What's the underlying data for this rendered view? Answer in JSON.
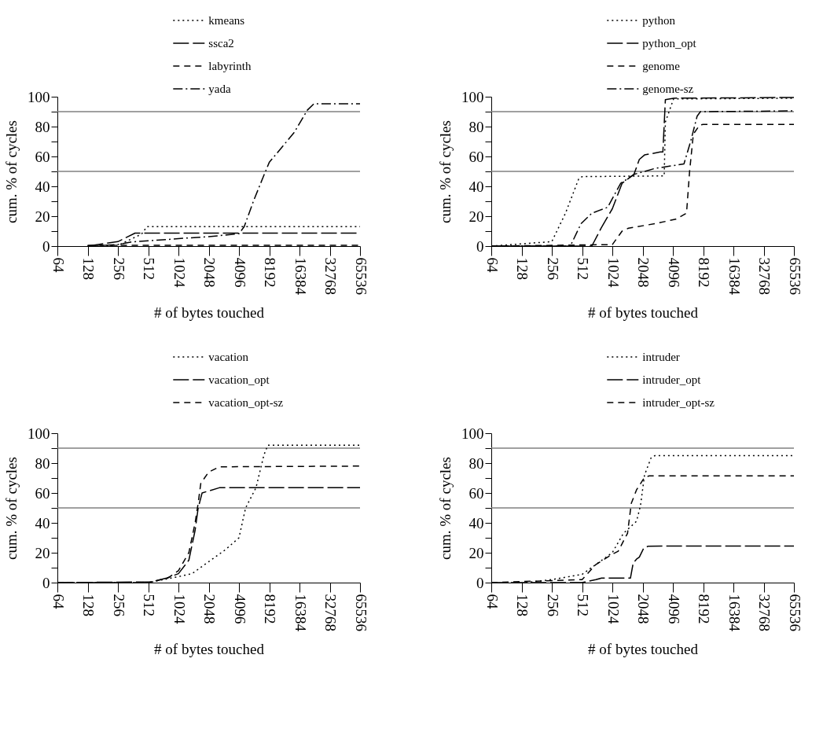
{
  "chart_data": [
    {
      "type": "line",
      "xlabel": "# of bytes touched",
      "ylabel": "cum. % of cycles",
      "log": "x",
      "legend": "top",
      "grid": false,
      "xlim": [
        64,
        65536
      ],
      "xticks": [
        64,
        128,
        256,
        512,
        1024,
        2048,
        4096,
        8192,
        16384,
        32768,
        65536
      ],
      "ylim": [
        0,
        100
      ],
      "yticks": [
        0,
        {
          "value": 10,
          "label": null
        },
        20,
        {
          "value": 30,
          "label": null
        },
        40,
        {
          "value": 50,
          "label": null
        },
        60,
        {
          "value": 70,
          "label": null
        },
        80,
        {
          "value": 90,
          "label": null
        },
        100
      ],
      "ref_lines": [
        {
          "axis": "y",
          "value": 50,
          "color": "#808080"
        },
        {
          "axis": "y",
          "value": 90,
          "color": "#808080"
        }
      ],
      "series": [
        {
          "name": "kmeans",
          "color": "#000000",
          "line_style": "dotted",
          "x": [
            128,
            256,
            440,
            497,
            65536
          ],
          "values": [
            0,
            0.5,
            8,
            13,
            13
          ]
        },
        {
          "name": "ssca2",
          "color": "#000000",
          "line_style": "longdash",
          "x": [
            128,
            256,
            379,
            65536
          ],
          "values": [
            0,
            3,
            8.7,
            8.7
          ]
        },
        {
          "name": "labyrinth",
          "color": "#000000",
          "line_style": "dashed",
          "x": [
            128,
            65536
          ],
          "values": [
            0.5,
            0.5
          ]
        },
        {
          "name": "yada",
          "color": "#000000",
          "line_style": "dashdot",
          "x": [
            128,
            256,
            350,
            512,
            1024,
            2048,
            4096,
            4620,
            5700,
            7260,
            8192,
            14500,
            19600,
            22800,
            65536
          ],
          "values": [
            0,
            1,
            2.8,
            3.5,
            5,
            6.3,
            8.3,
            13,
            30,
            47.5,
            56,
            76,
            91,
            95.3,
            95.3
          ]
        }
      ]
    },
    {
      "type": "line",
      "xlabel": "# of bytes touched",
      "ylabel": "cum. % of cycles",
      "log": "x",
      "legend": "top",
      "grid": false,
      "xlim": [
        64,
        65536
      ],
      "xticks": [
        64,
        128,
        256,
        512,
        1024,
        2048,
        4096,
        8192,
        16384,
        32768,
        65536
      ],
      "ylim": [
        0,
        100
      ],
      "yticks": [
        0,
        {
          "value": 10,
          "label": null
        },
        20,
        {
          "value": 30,
          "label": null
        },
        40,
        {
          "value": 50,
          "label": null
        },
        60,
        {
          "value": 70,
          "label": null
        },
        80,
        {
          "value": 90,
          "label": null
        },
        100
      ],
      "ref_lines": [
        {
          "axis": "y",
          "value": 50,
          "color": "#808080"
        },
        {
          "axis": "y",
          "value": 90,
          "color": "#808080"
        }
      ],
      "series": [
        {
          "name": "python",
          "color": "#000000",
          "line_style": "dotted",
          "x": [
            64,
            256,
            350,
            474,
            512,
            3360,
            3450,
            4160,
            65536
          ],
          "values": [
            0,
            3,
            22,
            45,
            46.5,
            47,
            83,
            98.5,
            99
          ]
        },
        {
          "name": "python_opt",
          "color": "#000000",
          "line_style": "longdash",
          "x": [
            64,
            640,
            792,
            1024,
            1280,
            1680,
            1900,
            2140,
            3070,
            3260,
            3450,
            4160,
            65536
          ],
          "values": [
            0,
            0,
            12,
            25,
            42,
            48,
            58,
            61,
            63,
            63,
            98,
            99,
            99.5
          ]
        },
        {
          "name": "genome",
          "color": "#000000",
          "line_style": "dashed",
          "x": [
            64,
            1024,
            1280,
            1480,
            2720,
            4380,
            5600,
            6010,
            6550,
            7580,
            8192,
            65536
          ],
          "values": [
            0,
            1,
            10,
            12,
            15,
            18,
            22,
            50,
            75,
            81,
            81.5,
            81.5
          ]
        },
        {
          "name": "genome-sz",
          "color": "#000000",
          "line_style": "dashdot",
          "x": [
            64,
            391,
            500,
            640,
            920,
            1240,
            1680,
            2720,
            5280,
            6150,
            7140,
            7700,
            65536
          ],
          "values": [
            0,
            0,
            15,
            22,
            26,
            42,
            48,
            52,
            55,
            70,
            87,
            90,
            90.5
          ]
        }
      ]
    },
    {
      "type": "line",
      "xlabel": "# of bytes touched",
      "ylabel": "cum. % of cycles",
      "log": "x",
      "legend": "top",
      "grid": false,
      "xlim": [
        64,
        65536
      ],
      "xticks": [
        64,
        128,
        256,
        512,
        1024,
        2048,
        4096,
        8192,
        16384,
        32768,
        65536
      ],
      "ylim": [
        0,
        100
      ],
      "yticks": [
        0,
        {
          "value": 10,
          "label": null
        },
        20,
        {
          "value": 30,
          "label": null
        },
        40,
        {
          "value": 50,
          "label": null
        },
        60,
        {
          "value": 70,
          "label": null
        },
        80,
        {
          "value": 90,
          "label": null
        },
        100
      ],
      "ref_lines": [
        {
          "axis": "y",
          "value": 50,
          "color": "#808080"
        },
        {
          "axis": "y",
          "value": 90,
          "color": "#808080"
        }
      ],
      "series": [
        {
          "name": "vacation",
          "color": "#000000",
          "line_style": "dotted",
          "x": [
            64,
            512,
            1024,
            1400,
            2048,
            3000,
            4096,
            4770,
            6050,
            7260,
            7940,
            65536
          ],
          "values": [
            0,
            0,
            4,
            6,
            14,
            22,
            30,
            50,
            63.5,
            85.5,
            92,
            92
          ]
        },
        {
          "name": "vacation_opt",
          "color": "#000000",
          "line_style": "longdash",
          "x": [
            64,
            545,
            781,
            1024,
            1300,
            1500,
            1610,
            1760,
            2610,
            65536
          ],
          "values": [
            0,
            0.5,
            3,
            6,
            15,
            35,
            50,
            60,
            63.5,
            63.5
          ]
        },
        {
          "name": "vacation_opt-sz",
          "color": "#000000",
          "line_style": "dashed",
          "x": [
            64,
            512,
            800,
            1024,
            1300,
            1500,
            1600,
            1710,
            2048,
            2610,
            65536
          ],
          "values": [
            0,
            0,
            3,
            8,
            20,
            40,
            52,
            66.5,
            74,
            77.5,
            78
          ]
        }
      ]
    },
    {
      "type": "line",
      "xlabel": "# of bytes touched",
      "ylabel": "cum. % of cycles",
      "log": "x",
      "legend": "top",
      "grid": false,
      "xlim": [
        64,
        65536
      ],
      "xticks": [
        64,
        128,
        256,
        512,
        1024,
        2048,
        4096,
        8192,
        16384,
        32768,
        65536
      ],
      "ylim": [
        0,
        100
      ],
      "yticks": [
        0,
        {
          "value": 10,
          "label": null
        },
        20,
        {
          "value": 30,
          "label": null
        },
        40,
        {
          "value": 50,
          "label": null
        },
        60,
        {
          "value": 70,
          "label": null
        },
        80,
        {
          "value": 90,
          "label": null
        },
        100
      ],
      "ref_lines": [
        {
          "axis": "y",
          "value": 50,
          "color": "#808080"
        },
        {
          "axis": "y",
          "value": 90,
          "color": "#808080"
        }
      ],
      "series": [
        {
          "name": "intruder",
          "color": "#000000",
          "line_style": "dotted",
          "x": [
            142,
            256,
            512,
            1024,
            1320,
            1780,
            1950,
            2140,
            2490,
            2720,
            65536
          ],
          "values": [
            0,
            2,
            5.5,
            20,
            33,
            41,
            51.4,
            72,
            83.6,
            85,
            85
          ]
        },
        {
          "name": "intruder_opt",
          "color": "#000000",
          "line_style": "longdash",
          "x": [
            64,
            512,
            700,
            800,
            1550,
            1650,
            1780,
            1900,
            2100,
            2340,
            65536
          ],
          "values": [
            0,
            0,
            2,
            3,
            3,
            13,
            15.7,
            17,
            23,
            24.4,
            24.5
          ]
        },
        {
          "name": "intruder_opt-sz",
          "color": "#000000",
          "line_style": "dashed",
          "x": [
            64,
            512,
            700,
            1024,
            1170,
            1450,
            1580,
            1780,
            2140,
            2380,
            65536
          ],
          "values": [
            0,
            2,
            12,
            19,
            21,
            33,
            53,
            62,
            70.5,
            71.4,
            71.5
          ]
        }
      ]
    }
  ]
}
